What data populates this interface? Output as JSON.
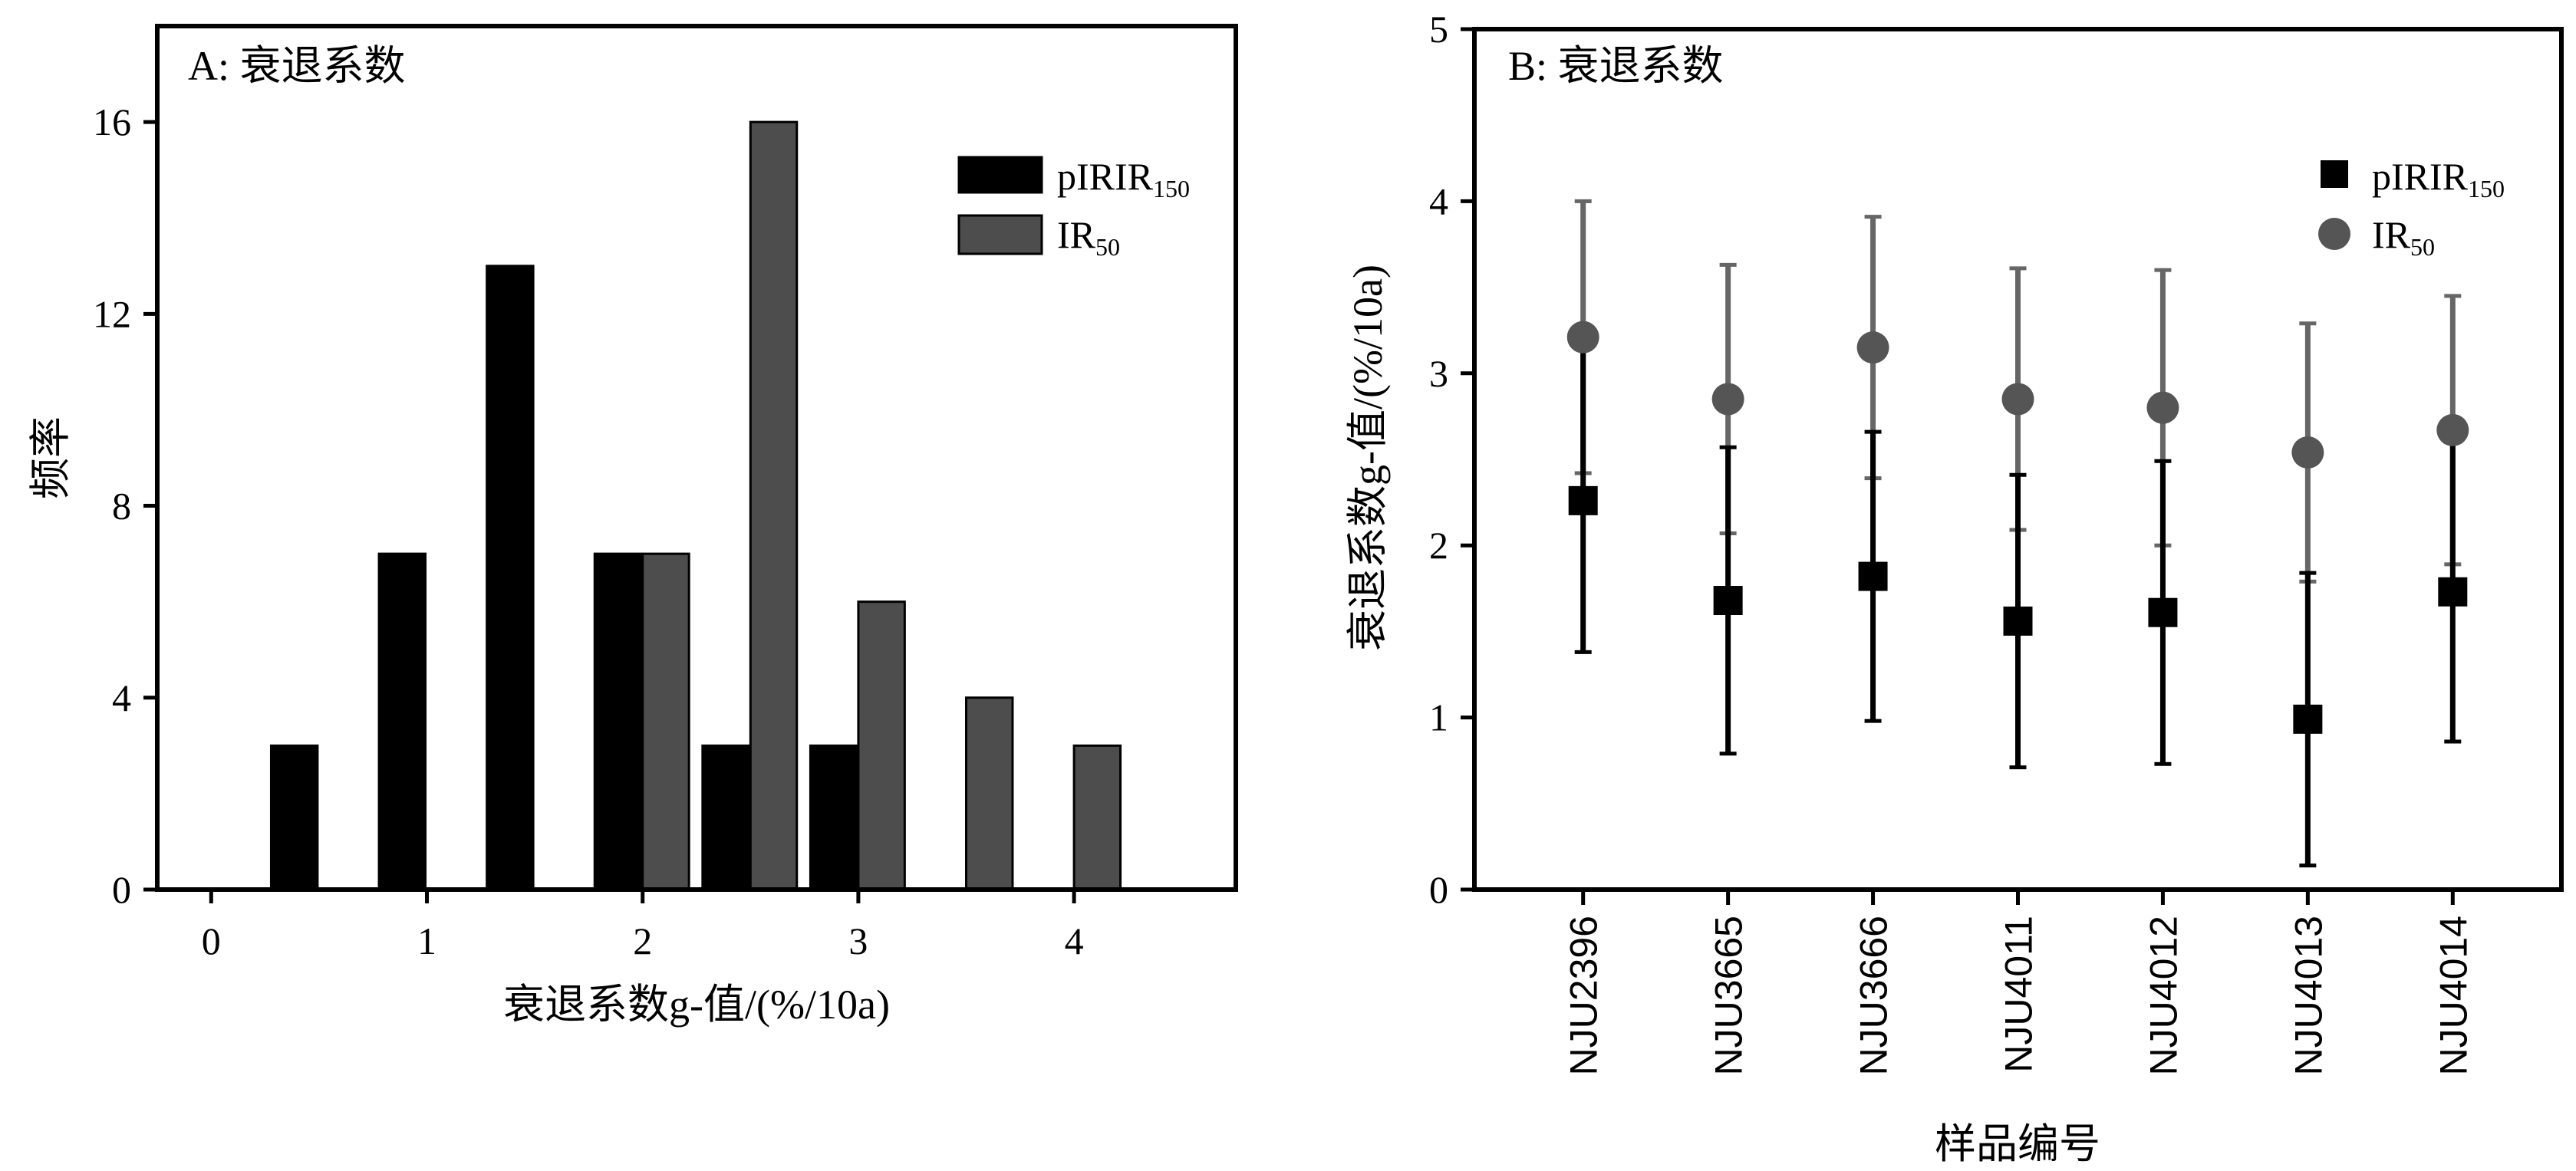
{
  "chart_data": [
    {
      "type": "bar",
      "panel_title": "A: 衰退系数",
      "xlabel": "衰退系数g-值/(%/10a)",
      "ylabel": "频率",
      "xlim": [
        -0.25,
        4.75
      ],
      "ylim": [
        0,
        18
      ],
      "xticks": [
        "0",
        "1",
        "2",
        "3",
        "4"
      ],
      "yticks": [
        "0",
        "4",
        "8",
        "12",
        "16"
      ],
      "bin_width": 0.5,
      "series": [
        {
          "name": "pIRIR150",
          "name_base": "pIRIR",
          "name_sub": "150",
          "color": "#000000",
          "x": [
            0.5,
            1.0,
            1.5,
            2.0,
            2.5,
            3.0
          ],
          "values": [
            3,
            7,
            13,
            7,
            3,
            3
          ]
        },
        {
          "name": "IR50",
          "name_base": "IR",
          "name_sub": "50",
          "color": "#4d4d4d",
          "x": [
            2.0,
            2.5,
            3.0,
            3.5,
            4.0
          ],
          "values": [
            7,
            16,
            6,
            4,
            3
          ]
        }
      ],
      "legend_position": "top-right"
    },
    {
      "type": "scatter",
      "panel_title": "B: 衰退系数",
      "xlabel": "样品编号",
      "ylabel": "衰退系数g-值/(%/10a)",
      "ylim": [
        0,
        5
      ],
      "yticks": [
        "0",
        "1",
        "2",
        "3",
        "4",
        "5"
      ],
      "categories": [
        "NJU2396",
        "NJU3665",
        "NJU3666",
        "NJU4011",
        "NJU4012",
        "NJU4013",
        "NJU4014"
      ],
      "series": [
        {
          "name": "pIRIR150",
          "name_base": "pIRIR",
          "name_sub": "150",
          "marker": "square",
          "color": "#000000",
          "values": [
            2.26,
            1.68,
            1.82,
            1.56,
            1.61,
            0.99,
            1.73
          ],
          "errors": [
            0.88,
            0.89,
            0.84,
            0.85,
            0.88,
            0.85,
            0.87
          ]
        },
        {
          "name": "IR50",
          "name_base": "IR",
          "name_sub": "50",
          "marker": "circle",
          "color": "#555555",
          "values": [
            3.21,
            2.85,
            3.15,
            2.85,
            2.8,
            2.54,
            2.67
          ],
          "errors": [
            0.79,
            0.78,
            0.76,
            0.76,
            0.8,
            0.75,
            0.78
          ]
        }
      ],
      "legend_position": "top-right"
    }
  ]
}
